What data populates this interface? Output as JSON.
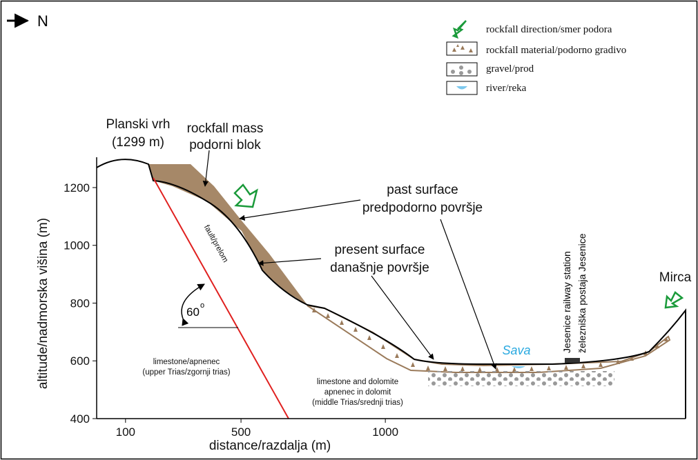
{
  "north": "N",
  "legend": [
    {
      "label": "rockfall direction/smer podora"
    },
    {
      "label": "rockfall material/podorno gradivo"
    },
    {
      "label": "gravel/prod"
    },
    {
      "label": "river/reka"
    }
  ],
  "axes": {
    "x_label": "distance/razdalja (m)",
    "y_label": "altitude/nadmorska višina (m)",
    "xlim": [
      0,
      2040
    ],
    "ylim": [
      400,
      1305
    ],
    "xticks": [
      100,
      500,
      1000
    ],
    "yticks": [
      400,
      600,
      800,
      1000,
      1200
    ]
  },
  "labels": {
    "peak": "Planski vrh",
    "peak_altitude": "(1299 m)",
    "mass_1": "rockfall mass",
    "mass_2": "podorni blok",
    "past_1": "past surface",
    "past_2": "predpodorno površje",
    "present_1": "present surface",
    "present_2": "današnje površje",
    "fault": "fault/prelom",
    "angle": "60",
    "angle_unit": "o",
    "upper_1": "limestone/apnenec",
    "upper_2": "(upper Trias/zgornji trias)",
    "middle_1": "limestone and dolomite",
    "middle_2": "apnenec in dolomit",
    "middle_3": "(middle Trias/srednji  trias)",
    "river": "Sava",
    "station_1": "Jesenice railway station",
    "station_2": "železniška postaja Jesenice",
    "mirca": "Mirca"
  }
}
